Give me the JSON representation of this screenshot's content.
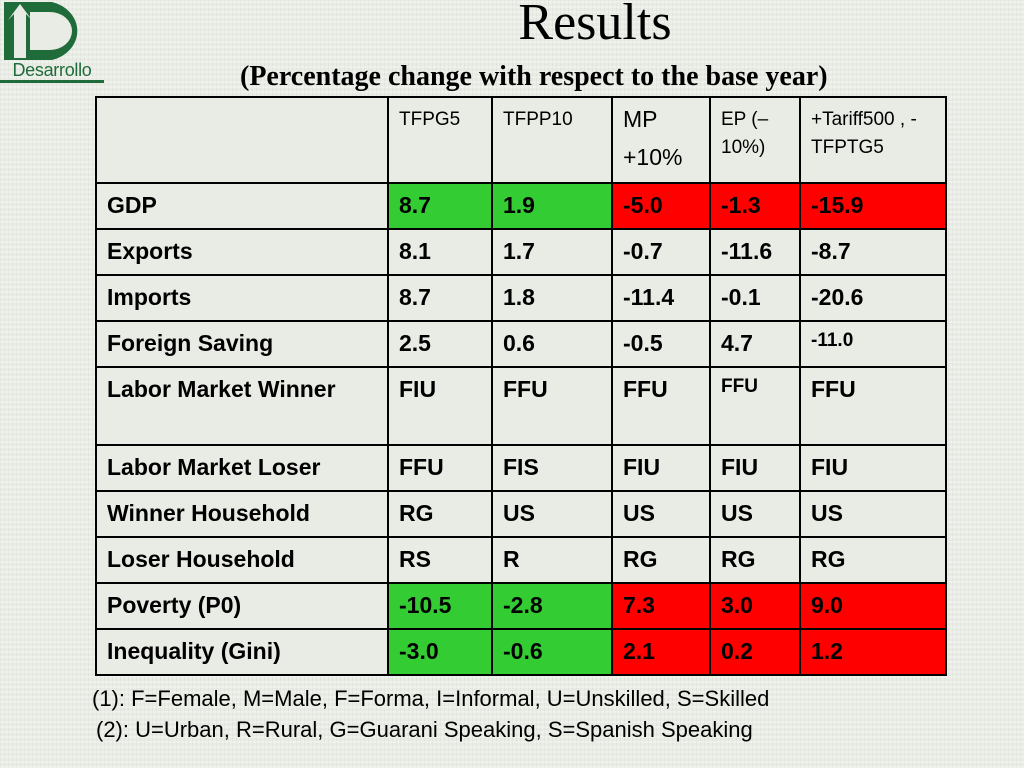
{
  "logo": {
    "wordmark": "Desarrollo"
  },
  "title": "Results",
  "subtitle": "(Percentage change with respect to the base year)",
  "table": {
    "headers": [
      "",
      "TFPG5",
      "TFPP10",
      "MP +10%",
      "EP (–10%)",
      "+Tariff500 , -TFPTG5"
    ],
    "rows": [
      {
        "label": "GDP",
        "cells": [
          "8.7",
          "1.9",
          "-5.0",
          "-1.3",
          "-15.9"
        ],
        "colors": [
          "#33cc33",
          "#33cc33",
          "#ff0000",
          "#ff0000",
          "#ff0000"
        ]
      },
      {
        "label": "Exports",
        "cells": [
          "8.1",
          "1.7",
          "-0.7",
          "-11.6",
          "-8.7"
        ]
      },
      {
        "label": "Imports",
        "cells": [
          "8.7",
          "1.8",
          "-11.4",
          "-0.1",
          "-20.6"
        ]
      },
      {
        "label": "Foreign Saving",
        "cells": [
          "2.5",
          "0.6",
          "-0.5",
          "4.7",
          "-11.0"
        ]
      },
      {
        "label": "Labor Market Winner",
        "cells": [
          "FIU",
          "FFU",
          "FFU",
          "FFU",
          "FFU"
        ]
      },
      {
        "label": "Labor Market Loser",
        "cells": [
          "FFU",
          "FIS",
          "FIU",
          "FIU",
          "FIU"
        ]
      },
      {
        "label": "Winner Household",
        "cells": [
          "RG",
          "US",
          "US",
          "US",
          "US"
        ]
      },
      {
        "label": "Loser Household",
        "cells": [
          "RS",
          "R",
          "RG",
          "RG",
          "RG"
        ]
      },
      {
        "label": "Poverty (P0)",
        "cells": [
          "-10.5",
          "-2.8",
          "7.3",
          "3.0",
          "9.0"
        ],
        "colors": [
          "#33cc33",
          "#33cc33",
          "#ff0000",
          "#ff0000",
          "#ff0000"
        ]
      },
      {
        "label": "Inequality (Gini)",
        "cells": [
          "-3.0",
          "-0.6",
          "2.1",
          "0.2",
          "1.2"
        ],
        "colors": [
          "#33cc33",
          "#33cc33",
          "#ff0000",
          "#ff0000",
          "#ff0000"
        ]
      }
    ]
  },
  "notes": [
    "(1): F=Female, M=Male, F=Forma, I=Informal, U=Unskilled, S=Skilled",
    "(2): U=Urban, R=Rural, G=Guarani Speaking, S=Spanish Speaking"
  ]
}
